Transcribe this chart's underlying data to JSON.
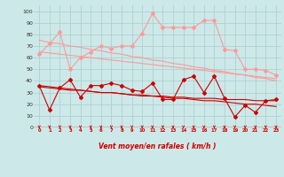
{
  "x": [
    0,
    1,
    2,
    3,
    4,
    5,
    6,
    7,
    8,
    9,
    10,
    11,
    12,
    13,
    14,
    15,
    16,
    17,
    18,
    19,
    20,
    21,
    22,
    23
  ],
  "series_dark_jagged": [
    36,
    15,
    34,
    41,
    26,
    36,
    36,
    38,
    36,
    32,
    31,
    38,
    24,
    24,
    41,
    44,
    30,
    44,
    25,
    9,
    19,
    13,
    23,
    24
  ],
  "series_dark_trend": [
    35,
    34,
    33,
    32,
    32,
    31,
    30,
    30,
    29,
    28,
    27,
    27,
    26,
    25,
    25,
    24,
    23,
    23,
    22,
    21,
    20,
    20,
    19,
    18
  ],
  "series_dark_flat": [
    36,
    35,
    34,
    33,
    32,
    31,
    30,
    30,
    29,
    28,
    28,
    27,
    27,
    26,
    26,
    25,
    25,
    25,
    24,
    24,
    24,
    23,
    23,
    23
  ],
  "series_light_jagged": [
    63,
    72,
    82,
    50,
    60,
    65,
    70,
    68,
    70,
    70,
    81,
    98,
    86,
    86,
    86,
    86,
    92,
    92,
    67,
    66,
    50,
    50,
    49,
    45
  ],
  "series_light_trend1": [
    75,
    73,
    72,
    70,
    69,
    67,
    66,
    64,
    63,
    61,
    60,
    58,
    57,
    55,
    54,
    52,
    51,
    49,
    48,
    46,
    45,
    43,
    42,
    40
  ],
  "series_light_trend2": [
    65,
    64,
    63,
    62,
    61,
    60,
    59,
    58,
    57,
    56,
    55,
    54,
    53,
    52,
    51,
    50,
    49,
    48,
    47,
    46,
    45,
    44,
    43,
    42
  ],
  "bg_color": "#cce8e8",
  "grid_color": "#aacccc",
  "line_color_dark": "#cc0000",
  "line_color_light": "#ff9999",
  "xlabel": "Vent moyen/en rafales ( km/h )",
  "ylabel_ticks": [
    0,
    10,
    20,
    30,
    40,
    50,
    60,
    70,
    80,
    90,
    100
  ],
  "ylim": [
    0,
    105
  ],
  "xlim": [
    -0.5,
    23.5
  ],
  "arrow_color": "#cc0000"
}
